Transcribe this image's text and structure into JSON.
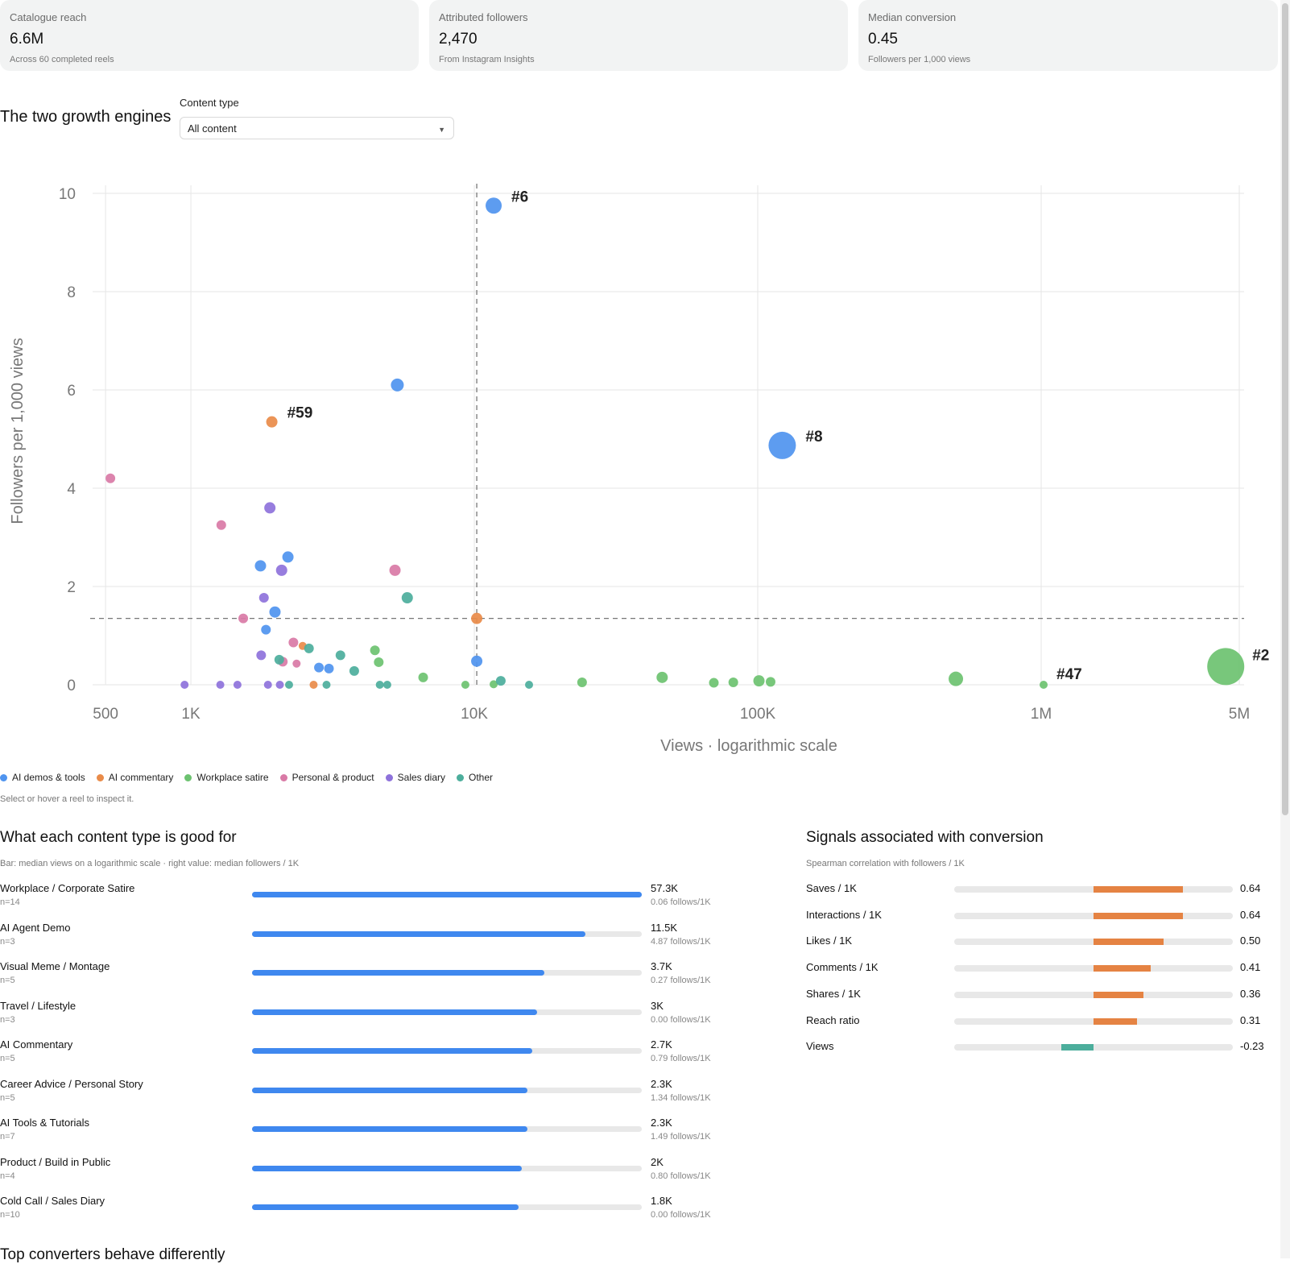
{
  "kpis": [
    {
      "label": "Catalogue reach",
      "value": "6.6M",
      "sub": "Across 60 completed reels"
    },
    {
      "label": "Attributed followers",
      "value": "2,470",
      "sub": "From Instagram Insights"
    },
    {
      "label": "Median conversion",
      "value": "0.45",
      "sub": "Followers per 1,000 views"
    }
  ],
  "section": {
    "title": "The two growth engines",
    "filter_label": "Content type",
    "filter_value": "All content"
  },
  "legend": [
    {
      "label": "AI demos & tools",
      "color": "#4f94ef"
    },
    {
      "label": "AI commentary",
      "color": "#e98b49"
    },
    {
      "label": "Workplace satire",
      "color": "#6cc270"
    },
    {
      "label": "Personal & product",
      "color": "#d97aa6"
    },
    {
      "label": "Sales diary",
      "color": "#8e72db"
    },
    {
      "label": "Other",
      "color": "#4cae9c"
    }
  ],
  "hint": "Select or hover a reel to inspect it.",
  "chart_data": {
    "type": "scatter",
    "title": "",
    "xlabel": "Views · logarithmic scale",
    "ylabel": "Followers per 1,000 views",
    "xscale": "log",
    "xlim": [
      450,
      5200000
    ],
    "ylim": [
      0,
      10
    ],
    "x_ticks": [
      {
        "v": 500,
        "label": "500"
      },
      {
        "v": 1000,
        "label": "1K"
      },
      {
        "v": 10000,
        "label": "10K"
      },
      {
        "v": 100000,
        "label": "100K"
      },
      {
        "v": 1000000,
        "label": "1M"
      },
      {
        "v": 5000000,
        "label": "5M"
      }
    ],
    "y_ticks": [
      0,
      2,
      4,
      6,
      8,
      10
    ],
    "reference_lines": {
      "x": 10200,
      "y": 1.35
    },
    "grid": true,
    "series": [
      {
        "name": "AI demos & tools",
        "color": "#4f94ef",
        "points": [
          {
            "x": 11700,
            "y": 9.75,
            "label": "#6",
            "size": 10
          },
          {
            "x": 5350,
            "y": 6.1,
            "size": 8
          },
          {
            "x": 122000,
            "y": 4.87,
            "label": "#8",
            "size": 17
          },
          {
            "x": 2200,
            "y": 2.6,
            "size": 7
          },
          {
            "x": 1760,
            "y": 2.42,
            "size": 7
          },
          {
            "x": 1980,
            "y": 1.48,
            "size": 7
          },
          {
            "x": 1840,
            "y": 1.12,
            "size": 6
          },
          {
            "x": 10200,
            "y": 0.48,
            "size": 7
          },
          {
            "x": 2830,
            "y": 0.35,
            "size": 6
          },
          {
            "x": 3070,
            "y": 0.33,
            "size": 6
          }
        ]
      },
      {
        "name": "AI commentary",
        "color": "#e98b49",
        "points": [
          {
            "x": 1930,
            "y": 5.35,
            "label": "#59",
            "size": 7
          },
          {
            "x": 10200,
            "y": 1.35,
            "size": 7
          },
          {
            "x": 2480,
            "y": 0.79,
            "size": 5
          },
          {
            "x": 2710,
            "y": 0.0,
            "size": 5
          }
        ]
      },
      {
        "name": "Workplace satire",
        "color": "#6cc270",
        "points": [
          {
            "x": 4480000,
            "y": 0.37,
            "label": "#2",
            "size": 23
          },
          {
            "x": 500000,
            "y": 0.12,
            "label": "",
            "size": 9
          },
          {
            "x": 1020000,
            "y": 0.0,
            "label": "#47",
            "size": 5
          },
          {
            "x": 46000,
            "y": 0.15,
            "size": 7
          },
          {
            "x": 70000,
            "y": 0.04,
            "size": 6
          },
          {
            "x": 82000,
            "y": 0.05,
            "size": 6
          },
          {
            "x": 101000,
            "y": 0.08,
            "size": 7
          },
          {
            "x": 111000,
            "y": 0.06,
            "size": 6
          },
          {
            "x": 24000,
            "y": 0.05,
            "size": 6
          },
          {
            "x": 6600,
            "y": 0.15,
            "size": 6
          },
          {
            "x": 9300,
            "y": 0.0,
            "size": 5
          },
          {
            "x": 11700,
            "y": 0.01,
            "size": 5
          },
          {
            "x": 4460,
            "y": 0.7,
            "size": 6
          },
          {
            "x": 4600,
            "y": 0.46,
            "size": 6
          }
        ]
      },
      {
        "name": "Personal & product",
        "color": "#d97aa6",
        "points": [
          {
            "x": 520,
            "y": 4.2,
            "size": 6
          },
          {
            "x": 1280,
            "y": 3.25,
            "size": 6
          },
          {
            "x": 5250,
            "y": 2.33,
            "size": 7
          },
          {
            "x": 1530,
            "y": 1.35,
            "size": 6
          },
          {
            "x": 2300,
            "y": 0.86,
            "size": 6
          },
          {
            "x": 2110,
            "y": 0.47,
            "size": 6
          },
          {
            "x": 2360,
            "y": 0.43,
            "size": 5
          }
        ]
      },
      {
        "name": "Sales diary",
        "color": "#8e72db",
        "points": [
          {
            "x": 1900,
            "y": 3.6,
            "size": 7
          },
          {
            "x": 2090,
            "y": 2.33,
            "size": 7
          },
          {
            "x": 1810,
            "y": 1.77,
            "size": 6
          },
          {
            "x": 1770,
            "y": 0.6,
            "size": 6
          },
          {
            "x": 950,
            "y": 0.0,
            "size": 5
          },
          {
            "x": 1270,
            "y": 0.0,
            "size": 5
          },
          {
            "x": 1460,
            "y": 0.0,
            "size": 5
          },
          {
            "x": 1870,
            "y": 0.0,
            "size": 5
          },
          {
            "x": 2060,
            "y": 0.0,
            "size": 5
          }
        ]
      },
      {
        "name": "Other",
        "color": "#4cae9c",
        "points": [
          {
            "x": 5800,
            "y": 1.77,
            "size": 7
          },
          {
            "x": 2610,
            "y": 0.74,
            "size": 6
          },
          {
            "x": 3370,
            "y": 0.6,
            "size": 6
          },
          {
            "x": 2050,
            "y": 0.51,
            "size": 6
          },
          {
            "x": 3770,
            "y": 0.28,
            "size": 6
          },
          {
            "x": 12400,
            "y": 0.08,
            "size": 6
          },
          {
            "x": 15600,
            "y": 0.0,
            "size": 5
          },
          {
            "x": 2220,
            "y": 0.0,
            "size": 5
          },
          {
            "x": 3010,
            "y": 0.0,
            "size": 5
          },
          {
            "x": 4640,
            "y": 0.0,
            "size": 5
          },
          {
            "x": 4930,
            "y": 0.0,
            "size": 5
          }
        ]
      }
    ]
  },
  "content_types": {
    "title": "What each content type is good for",
    "note": "Bar: median views on a logarithmic scale · right value: median followers / 1K",
    "rows": [
      {
        "name": "Workplace / Corporate Satire",
        "n": "n=14",
        "value": "57.3K",
        "follows": "0.06 follows/1K",
        "fill": 1.0
      },
      {
        "name": "AI Agent Demo",
        "n": "n=3",
        "value": "11.5K",
        "follows": "4.87 follows/1K",
        "fill": 0.855
      },
      {
        "name": "Visual Meme / Montage",
        "n": "n=5",
        "value": "3.7K",
        "follows": "0.27 follows/1K",
        "fill": 0.75
      },
      {
        "name": "Travel / Lifestyle",
        "n": "n=3",
        "value": "3K",
        "follows": "0.00 follows/1K",
        "fill": 0.732
      },
      {
        "name": "AI Commentary",
        "n": "n=5",
        "value": "2.7K",
        "follows": "0.79 follows/1K",
        "fill": 0.72
      },
      {
        "name": "Career Advice / Personal Story",
        "n": "n=5",
        "value": "2.3K",
        "follows": "1.34 follows/1K",
        "fill": 0.707
      },
      {
        "name": "AI Tools & Tutorials",
        "n": "n=7",
        "value": "2.3K",
        "follows": "1.49 follows/1K",
        "fill": 0.707
      },
      {
        "name": "Product / Build in Public",
        "n": "n=4",
        "value": "2K",
        "follows": "0.80 follows/1K",
        "fill": 0.693
      },
      {
        "name": "Cold Call / Sales Diary",
        "n": "n=10",
        "value": "1.8K",
        "follows": "0.00 follows/1K",
        "fill": 0.683
      }
    ]
  },
  "signals": {
    "title": "Signals associated with conversion",
    "note": "Spearman correlation with followers / 1K",
    "positive_color": "#e58343",
    "negative_color": "#4cae9c",
    "rows": [
      {
        "name": "Saves / 1K",
        "value": "0.64",
        "corr": 0.64
      },
      {
        "name": "Interactions / 1K",
        "value": "0.64",
        "corr": 0.64
      },
      {
        "name": "Likes / 1K",
        "value": "0.50",
        "corr": 0.5
      },
      {
        "name": "Comments / 1K",
        "value": "0.41",
        "corr": 0.41
      },
      {
        "name": "Shares / 1K",
        "value": "0.36",
        "corr": 0.36
      },
      {
        "name": "Reach ratio",
        "value": "0.31",
        "corr": 0.31
      },
      {
        "name": "Views",
        "value": "-0.23",
        "corr": -0.23
      }
    ]
  },
  "bottom_title": "Top converters behave differently"
}
